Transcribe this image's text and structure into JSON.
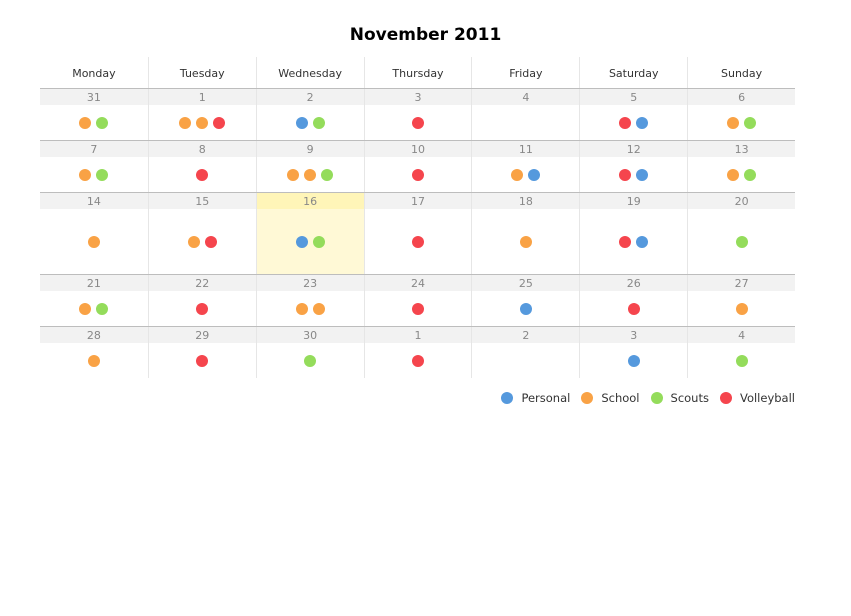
{
  "title": "November 2011",
  "weekdays": [
    "Monday",
    "Tuesday",
    "Wednesday",
    "Thursday",
    "Friday",
    "Saturday",
    "Sunday"
  ],
  "categories": {
    "personal": {
      "label": "Personal",
      "color": "#5599dd"
    },
    "school": {
      "label": "School",
      "color": "#f9a245"
    },
    "scouts": {
      "label": "Scouts",
      "color": "#94dc5b"
    },
    "volleyball": {
      "label": "Volleyball",
      "color": "#f5454d"
    }
  },
  "legend": [
    "personal",
    "school",
    "scouts",
    "volleyball"
  ],
  "today": "16",
  "weeks": [
    [
      {
        "day": "31",
        "events": [
          "school",
          "scouts"
        ]
      },
      {
        "day": "1",
        "events": [
          "school",
          "school",
          "volleyball"
        ]
      },
      {
        "day": "2",
        "events": [
          "personal",
          "scouts"
        ]
      },
      {
        "day": "3",
        "events": [
          "volleyball"
        ]
      },
      {
        "day": "4",
        "events": []
      },
      {
        "day": "5",
        "events": [
          "volleyball",
          "personal"
        ]
      },
      {
        "day": "6",
        "events": [
          "school",
          "scouts"
        ]
      }
    ],
    [
      {
        "day": "7",
        "events": [
          "school",
          "scouts"
        ]
      },
      {
        "day": "8",
        "events": [
          "volleyball"
        ]
      },
      {
        "day": "9",
        "events": [
          "school",
          "school",
          "scouts"
        ]
      },
      {
        "day": "10",
        "events": [
          "volleyball"
        ]
      },
      {
        "day": "11",
        "events": [
          "school",
          "personal"
        ]
      },
      {
        "day": "12",
        "events": [
          "volleyball",
          "personal"
        ]
      },
      {
        "day": "13",
        "events": [
          "school",
          "scouts"
        ]
      }
    ],
    [
      {
        "day": "14",
        "events": [
          "school"
        ]
      },
      {
        "day": "15",
        "events": [
          "school",
          "volleyball"
        ]
      },
      {
        "day": "16",
        "events": [
          "personal",
          "scouts"
        ]
      },
      {
        "day": "17",
        "events": [
          "volleyball"
        ]
      },
      {
        "day": "18",
        "events": [
          "school"
        ]
      },
      {
        "day": "19",
        "events": [
          "volleyball",
          "personal"
        ]
      },
      {
        "day": "20",
        "events": [
          "scouts"
        ]
      }
    ],
    [
      {
        "day": "21",
        "events": [
          "school",
          "scouts"
        ]
      },
      {
        "day": "22",
        "events": [
          "volleyball"
        ]
      },
      {
        "day": "23",
        "events": [
          "school",
          "school"
        ]
      },
      {
        "day": "24",
        "events": [
          "volleyball"
        ]
      },
      {
        "day": "25",
        "events": [
          "personal"
        ]
      },
      {
        "day": "26",
        "events": [
          "volleyball"
        ]
      },
      {
        "day": "27",
        "events": [
          "school"
        ]
      }
    ],
    [
      {
        "day": "28",
        "events": [
          "school"
        ]
      },
      {
        "day": "29",
        "events": [
          "volleyball"
        ]
      },
      {
        "day": "30",
        "events": [
          "scouts"
        ]
      },
      {
        "day": "1",
        "events": [
          "volleyball"
        ]
      },
      {
        "day": "2",
        "events": []
      },
      {
        "day": "3",
        "events": [
          "personal"
        ]
      },
      {
        "day": "4",
        "events": [
          "scouts"
        ]
      }
    ]
  ]
}
